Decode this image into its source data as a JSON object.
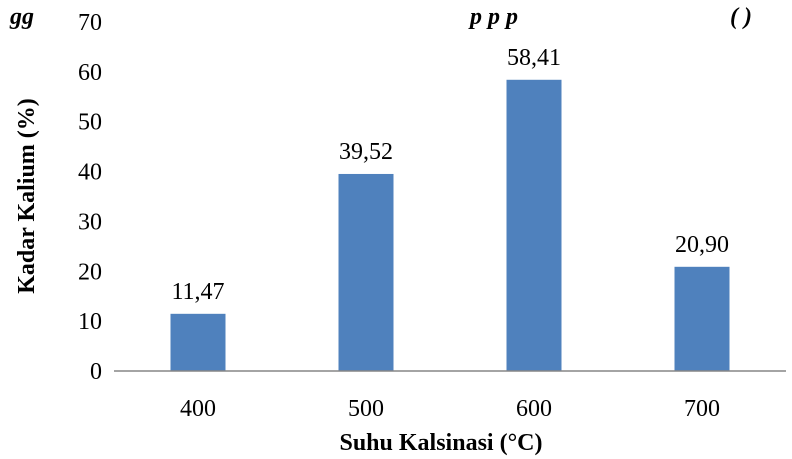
{
  "chart_data": {
    "type": "bar",
    "title_visible_fragment_left": "gg",
    "title_visible_fragment_middle": "p     p p",
    "title_visible_fragment_right": "( )",
    "categories": [
      "400",
      "500",
      "600",
      "700"
    ],
    "values": [
      11.47,
      39.52,
      58.41,
      20.9
    ],
    "data_labels": [
      "11,47",
      "39,52",
      "58,41",
      "20,90"
    ],
    "xlabel": "Suhu Kalsinasi (°C)",
    "ylabel": "Kadar Kalium (%)",
    "ylim": [
      0,
      70
    ],
    "yticks": [
      0,
      10,
      20,
      30,
      40,
      50,
      60,
      70
    ],
    "ytick_labels": [
      "0",
      "10",
      "20",
      "30",
      "40",
      "50",
      "60",
      "70"
    ],
    "grid": false,
    "legend": "none",
    "bar_color": "#4F81BD"
  }
}
